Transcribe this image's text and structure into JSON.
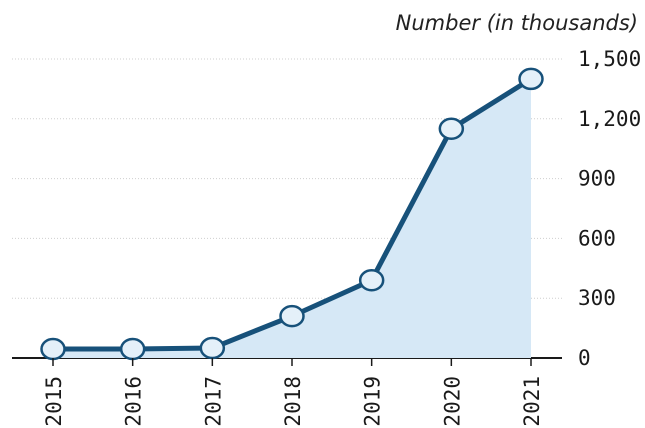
{
  "chart_data": {
    "type": "line",
    "title": "",
    "unit_label": "Number (in thousands)",
    "xlabel": "",
    "ylabel": "",
    "categories": [
      "2015",
      "2016",
      "2017",
      "2018",
      "2019",
      "2020",
      "2021"
    ],
    "series": [
      {
        "values": [
          45,
          45,
          50,
          210,
          390,
          1150,
          1400
        ]
      }
    ],
    "ylim": [
      0,
      1500
    ],
    "yticks": [
      0,
      300,
      600,
      900,
      1200,
      1500
    ],
    "ytick_labels": [
      "0",
      "300",
      "600",
      "900",
      "1,200",
      "1,500"
    ],
    "y_axis_side": "right",
    "area_fill": true,
    "grid": true,
    "colors": {
      "line": "#17517a",
      "area": "#d6e8f6",
      "marker_fill": "#e4f0f9",
      "marker_stroke": "#17517a"
    }
  }
}
